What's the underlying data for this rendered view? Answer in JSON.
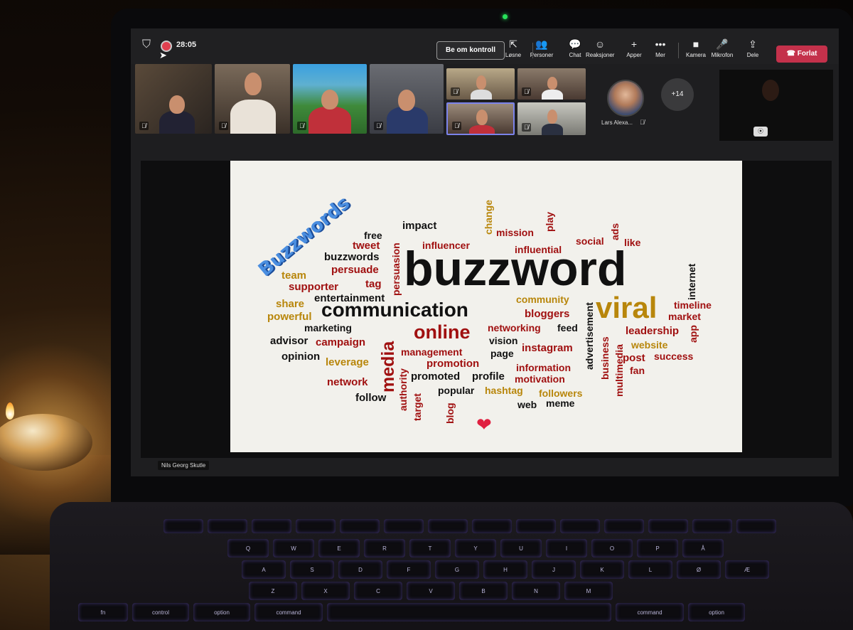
{
  "meeting": {
    "timer": "28:05",
    "control_button": "Be om kontroll",
    "toolbar": [
      {
        "label": "Løsne",
        "icon": "undock-icon",
        "glyph": "⇱"
      },
      {
        "label": "Personer",
        "icon": "people-icon",
        "glyph": "👥"
      },
      {
        "label": "Chat",
        "icon": "chat-icon",
        "glyph": "💬"
      },
      {
        "label": "Reaksjoner",
        "icon": "reactions-icon",
        "glyph": "☺"
      },
      {
        "label": "Apper",
        "icon": "plus-icon",
        "glyph": "+"
      },
      {
        "label": "Mer",
        "icon": "more-icon",
        "glyph": "•••"
      },
      {
        "label": "Kamera",
        "icon": "camera-icon",
        "glyph": "■"
      },
      {
        "label": "Mikrofon",
        "icon": "microphone-icon",
        "glyph": "🎤"
      },
      {
        "label": "Dele",
        "icon": "share-icon",
        "glyph": "⇪"
      }
    ],
    "leave_button": "Forlat",
    "participant_name": "Lars Alexa...",
    "more_participants": "+14",
    "presenter_name": "Nils Georg Skutle",
    "accent_color": "#c4314b"
  },
  "slide": {
    "title": "Buzzwords",
    "words": [
      {
        "text": "buzzword",
        "color": "#111111"
      },
      {
        "text": "communication",
        "color": "#111111"
      },
      {
        "text": "viral",
        "color": "#b8860b"
      },
      {
        "text": "online",
        "color": "#a01010"
      },
      {
        "text": "media",
        "color": "#a01010"
      },
      {
        "text": "free",
        "color": "#111111"
      },
      {
        "text": "impact",
        "color": "#111111"
      },
      {
        "text": "change",
        "color": "#b8860b"
      },
      {
        "text": "mission",
        "color": "#a01010"
      },
      {
        "text": "play",
        "color": "#a01010"
      },
      {
        "text": "social",
        "color": "#a01010"
      },
      {
        "text": "ads",
        "color": "#a01010"
      },
      {
        "text": "like",
        "color": "#a01010"
      },
      {
        "text": "tweet",
        "color": "#a01010"
      },
      {
        "text": "influencer",
        "color": "#a01010"
      },
      {
        "text": "influential",
        "color": "#a01010"
      },
      {
        "text": "buzzwords",
        "color": "#111111"
      },
      {
        "text": "persuasion",
        "color": "#a01010"
      },
      {
        "text": "persuade",
        "color": "#a01010"
      },
      {
        "text": "team",
        "color": "#b8860b"
      },
      {
        "text": "supporter",
        "color": "#a01010"
      },
      {
        "text": "tag",
        "color": "#a01010"
      },
      {
        "text": "internet",
        "color": "#111111"
      },
      {
        "text": "entertainment",
        "color": "#111111"
      },
      {
        "text": "share",
        "color": "#b8860b"
      },
      {
        "text": "powerful",
        "color": "#b8860b"
      },
      {
        "text": "community",
        "color": "#b8860b"
      },
      {
        "text": "bloggers",
        "color": "#a01010"
      },
      {
        "text": "timeline",
        "color": "#a01010"
      },
      {
        "text": "market",
        "color": "#a01010"
      },
      {
        "text": "marketing",
        "color": "#111111"
      },
      {
        "text": "networking",
        "color": "#a01010"
      },
      {
        "text": "feed",
        "color": "#111111"
      },
      {
        "text": "advertisement",
        "color": "#111111"
      },
      {
        "text": "leadership",
        "color": "#a01010"
      },
      {
        "text": "app",
        "color": "#a01010"
      },
      {
        "text": "advisor",
        "color": "#111111"
      },
      {
        "text": "campaign",
        "color": "#a01010"
      },
      {
        "text": "vision",
        "color": "#111111"
      },
      {
        "text": "management",
        "color": "#a01010"
      },
      {
        "text": "instagram",
        "color": "#a01010"
      },
      {
        "text": "business",
        "color": "#a01010"
      },
      {
        "text": "website",
        "color": "#b8860b"
      },
      {
        "text": "opinion",
        "color": "#111111"
      },
      {
        "text": "page",
        "color": "#111111"
      },
      {
        "text": "multimedia",
        "color": "#a01010"
      },
      {
        "text": "post",
        "color": "#a01010"
      },
      {
        "text": "success",
        "color": "#a01010"
      },
      {
        "text": "leverage",
        "color": "#b8860b"
      },
      {
        "text": "promotion",
        "color": "#a01010"
      },
      {
        "text": "authority",
        "color": "#a01010"
      },
      {
        "text": "information",
        "color": "#a01010"
      },
      {
        "text": "fan",
        "color": "#a01010"
      },
      {
        "text": "promoted",
        "color": "#111111"
      },
      {
        "text": "profile",
        "color": "#111111"
      },
      {
        "text": "motivation",
        "color": "#a01010"
      },
      {
        "text": "network",
        "color": "#a01010"
      },
      {
        "text": "target",
        "color": "#a01010"
      },
      {
        "text": "popular",
        "color": "#111111"
      },
      {
        "text": "hashtag",
        "color": "#b8860b"
      },
      {
        "text": "followers",
        "color": "#b8860b"
      },
      {
        "text": "follow",
        "color": "#111111"
      },
      {
        "text": "blog",
        "color": "#a01010"
      },
      {
        "text": "web",
        "color": "#111111"
      },
      {
        "text": "meme",
        "color": "#111111"
      }
    ]
  },
  "keyboard": {
    "row1": [
      "Q",
      "W",
      "E",
      "R",
      "T",
      "Y",
      "U",
      "I",
      "O",
      "P",
      "Å"
    ],
    "row2": [
      "A",
      "S",
      "D",
      "F",
      "G",
      "H",
      "J",
      "K",
      "L",
      "Ø",
      "Æ"
    ],
    "row3": [
      "Z",
      "X",
      "C",
      "V",
      "B",
      "N",
      "M"
    ],
    "mods": [
      "fn",
      "control",
      "option",
      "command",
      "command",
      "option"
    ]
  }
}
